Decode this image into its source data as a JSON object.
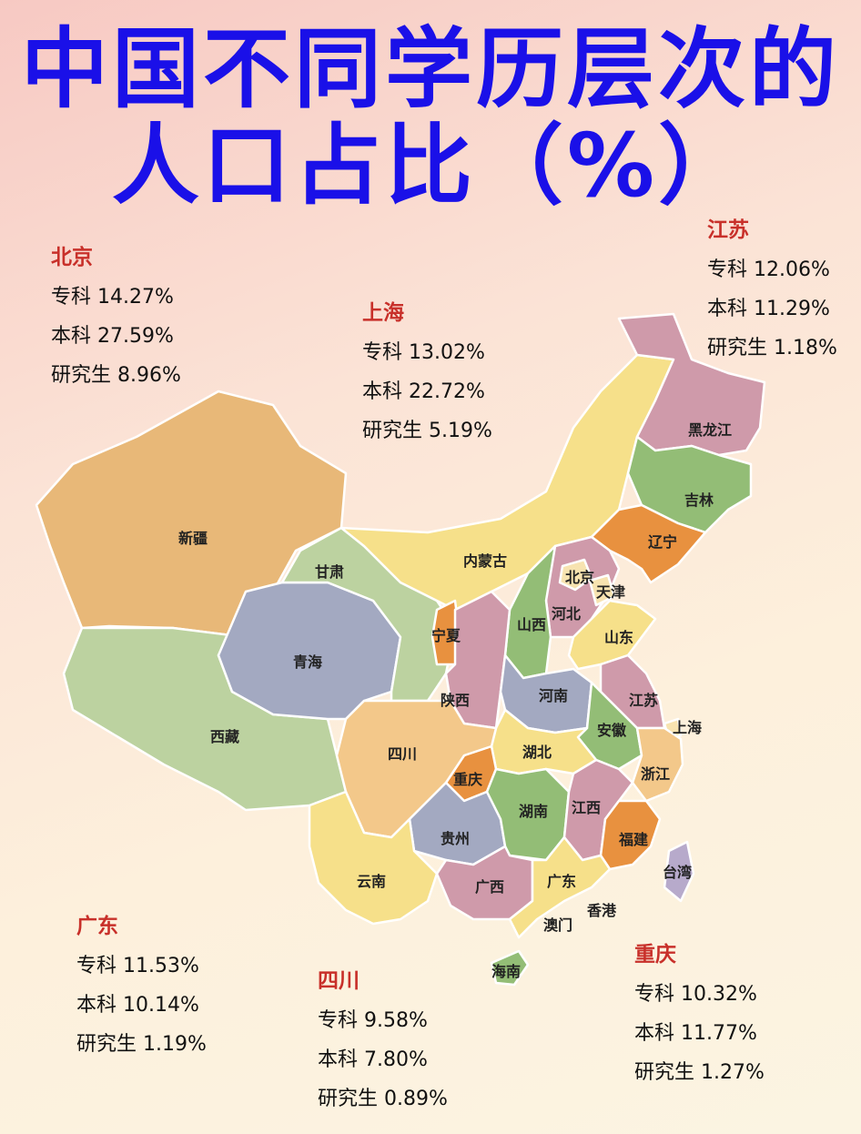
{
  "title": {
    "line1": "中国不同学历层次的",
    "line2": "人口占比（%）"
  },
  "stats": {
    "beijing": {
      "name": "北京",
      "zhuanke": "专科 14.27%",
      "benke": "本科 27.59%",
      "yanjiusheng": "研究生 8.96%"
    },
    "shanghai": {
      "name": "上海",
      "zhuanke": "专科 13.02%",
      "benke": "本科 22.72%",
      "yanjiusheng": "研究生 5.19%"
    },
    "jiangsu": {
      "name": "江苏",
      "zhuanke": "专科 12.06%",
      "benke": "本科 11.29%",
      "yanjiusheng": "研究生 1.18%"
    },
    "guangdong": {
      "name": "广东",
      "zhuanke": "专科 11.53%",
      "benke": "本科 10.14%",
      "yanjiusheng": "研究生 1.19%"
    },
    "sichuan": {
      "name": "四川",
      "zhuanke": "专科 9.58%",
      "benke": "本科 7.80%",
      "yanjiusheng": "研究生 0.89%"
    },
    "chongqing": {
      "name": "重庆",
      "zhuanke": "专科 10.32%",
      "benke": "本科 11.77%",
      "yanjiusheng": "研究生 1.27%"
    }
  },
  "map": {
    "labels": {
      "heilongjiang": "黑龙江",
      "jilin": "吉林",
      "liaoning": "辽宁",
      "neimenggu": "内蒙古",
      "xinjiang": "新疆",
      "gansu": "甘肃",
      "qinghai": "青海",
      "xizang": "西藏",
      "ningxia": "宁夏",
      "shanxi": "山西",
      "shaanxi": "陕西",
      "beijing": "北京",
      "tianjin": "天津",
      "hebei": "河北",
      "shandong": "山东",
      "henan": "河南",
      "jiangsu": "江苏",
      "shanghai": "上海",
      "anhui": "安徽",
      "hubei": "湖北",
      "sichuan": "四川",
      "chongqing": "重庆",
      "zhejiang": "浙江",
      "jiangxi": "江西",
      "hunan": "湖南",
      "guizhou": "贵州",
      "fujian": "福建",
      "taiwan": "台湾",
      "yunnan": "云南",
      "guangxi": "广西",
      "guangdong": "广东",
      "xianggang": "香港",
      "aomen": "澳门",
      "hainan": "海南"
    },
    "colors": {
      "tan": "#e8b878",
      "yellow": "#f6e08a",
      "gray": "#a3a9c1",
      "sage": "#bcd2a0",
      "pink": "#cf9aaa",
      "green": "#93bd76",
      "orange": "#e8913f",
      "cream": "#f7e3b0",
      "lightorange": "#f3c88a",
      "lavender": "#b7aacb"
    }
  }
}
